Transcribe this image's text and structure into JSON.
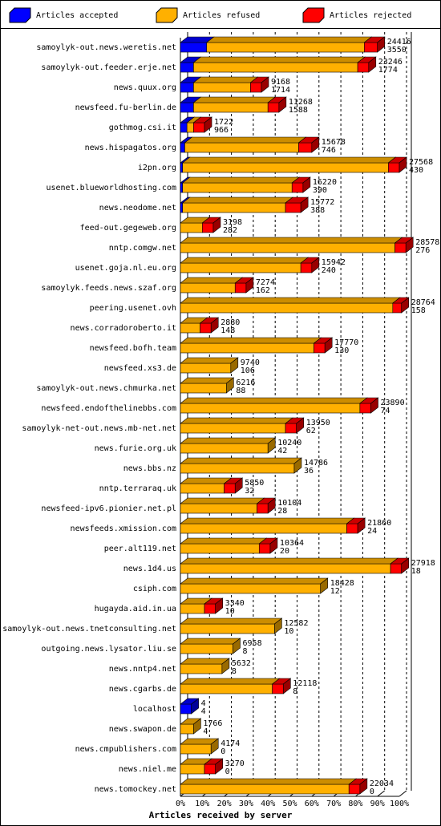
{
  "chart_data": {
    "type": "bar3d",
    "xlabel": "Articles received by server",
    "categories": [
      "samoylyk-out.news.weretis.net",
      "samoylyk-out.feeder.erje.net",
      "news.quux.org",
      "newsfeed.fu-berlin.de",
      "gothmog.csi.it",
      "news.hispagatos.org",
      "i2pn.org",
      "usenet.blueworldhosting.com",
      "news.neodome.net",
      "feed-out.gegeweb.org",
      "nntp.comgw.net",
      "usenet.goja.nl.eu.org",
      "samoylyk.feeds.news.szaf.org",
      "peering.usenet.ovh",
      "news.corradoroberto.it",
      "newsfeed.bofh.team",
      "newsfeed.xs3.de",
      "samoylyk-out.news.chmurka.net",
      "newsfeed.endofthelinebbs.com",
      "samoylyk-net-out.news.mb-net.net",
      "news.furie.org.uk",
      "news.bbs.nz",
      "nntp.terraraq.uk",
      "newsfeed-ipv6.pionier.net.pl",
      "newsfeeds.xmission.com",
      "peer.alt119.net",
      "news.1d4.us",
      "csiph.com",
      "hugayda.aid.in.ua",
      "samoylyk-out.news.tnetconsulting.net",
      "outgoing.news.lysator.liu.se",
      "news.nntp4.net",
      "news.cgarbs.de",
      "localhost",
      "news.swapon.de",
      "news.cmpublishers.com",
      "news.niel.me",
      "news.tomockey.net"
    ],
    "series": [
      {
        "name": "Articles accepted",
        "color": "#0000ff",
        "values": [
          12,
          6,
          6,
          6,
          3,
          2,
          1,
          1,
          1,
          0,
          0,
          0,
          0,
          0,
          0,
          0,
          0,
          0,
          0,
          0,
          0,
          0,
          0,
          0,
          0,
          0,
          0,
          0,
          0,
          0,
          0,
          0,
          0,
          5,
          0,
          0,
          0,
          0
        ]
      },
      {
        "name": "Articles refused",
        "color": "#ffb000",
        "values": [
          72,
          75,
          26,
          34,
          3,
          52,
          94,
          50,
          47,
          10,
          98,
          55,
          25,
          97,
          9,
          61,
          23,
          21,
          82,
          48,
          40,
          52,
          20,
          35,
          76,
          36,
          96,
          64,
          11,
          43,
          24,
          19,
          42,
          0,
          6,
          14,
          11,
          77
        ]
      },
      {
        "name": "Articles rejected",
        "color": "#ff0000",
        "values": [
          6,
          5,
          5,
          5,
          5,
          6,
          5,
          5,
          7,
          5,
          5,
          5,
          5,
          4,
          5,
          5,
          0,
          0,
          5,
          5,
          0,
          0,
          5,
          5,
          5,
          5,
          5,
          0,
          5,
          0,
          0,
          0,
          5,
          0,
          0,
          0,
          5,
          5
        ]
      }
    ],
    "totals": [
      24416,
      23246,
      9168,
      11268,
      1722,
      15678,
      27568,
      16220,
      15772,
      3198,
      28578,
      15942,
      7274,
      28764,
      2880,
      17770,
      9740,
      6216,
      23890,
      13950,
      10240,
      14786,
      5850,
      10104,
      21860,
      10364,
      27918,
      18428,
      3340,
      12582,
      6958,
      5632,
      12118,
      4,
      1766,
      4174,
      3270,
      22034
    ],
    "accepted": [
      3550,
      1774,
      1714,
      1588,
      966,
      746,
      430,
      390,
      388,
      282,
      276,
      240,
      162,
      158,
      148,
      130,
      106,
      88,
      74,
      62,
      42,
      36,
      32,
      28,
      24,
      20,
      18,
      12,
      10,
      10,
      8,
      8,
      8,
      4,
      4,
      0,
      0,
      0
    ],
    "xlim": [
      0,
      100
    ],
    "xticks": [
      {
        "value": 0,
        "label": "0%"
      },
      {
        "value": 10,
        "label": "10%"
      },
      {
        "value": 20,
        "label": "20%"
      },
      {
        "value": 30,
        "label": "30%"
      },
      {
        "value": 40,
        "label": "40%"
      },
      {
        "value": 50,
        "label": "50%"
      },
      {
        "value": 60,
        "label": "60%"
      },
      {
        "value": 70,
        "label": "70%"
      },
      {
        "value": 80,
        "label": "80%"
      },
      {
        "value": 90,
        "label": "90%"
      },
      {
        "value": 100,
        "label": "100%"
      }
    ],
    "grid": true
  }
}
